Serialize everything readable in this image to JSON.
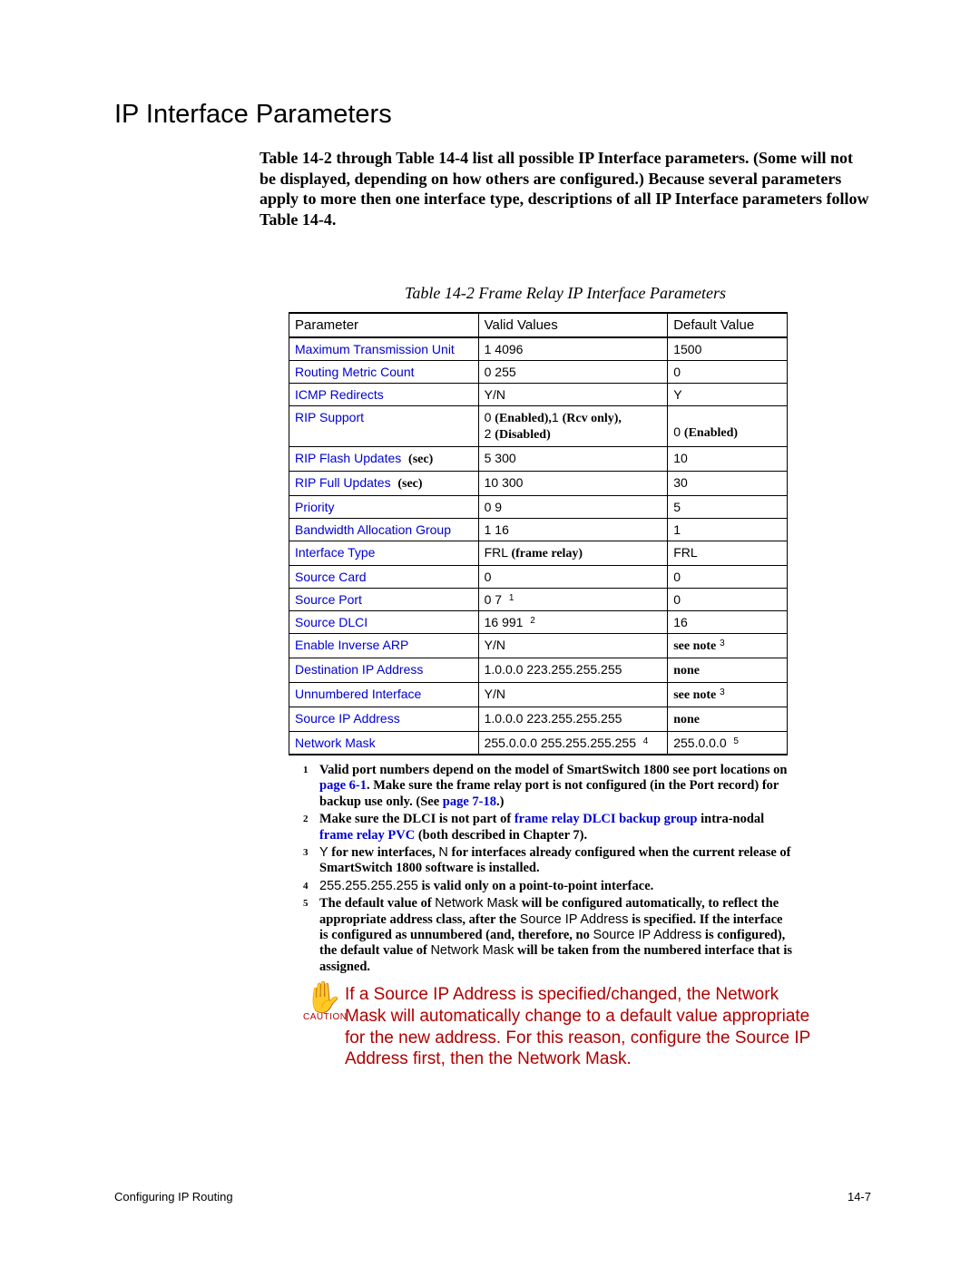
{
  "heading": "IP Interface Parameters",
  "intro": "Table 14-2 through Table 14-4 list all possible IP Interface parameters. (Some will not be displayed, depending on how others are configured.) Because several parameters apply to more then one interface type, descriptions of all IP Interface parameters follow Table 14-4.",
  "table_caption": "Table 14-2   Frame Relay IP Interface Parameters",
  "columns": {
    "c0": "Parameter",
    "c1": "Valid Values",
    "c2": "Default Value"
  },
  "rows": [
    {
      "p": "Maximum Transmission Unit",
      "v": "1 4096",
      "d": "1500"
    },
    {
      "p": "Routing Metric Count",
      "v": "0 255",
      "d": "0"
    },
    {
      "p": "ICMP Redirects",
      "v": "Y/N",
      "d": "Y"
    },
    {
      "p": "RIP Support",
      "v_html": "<span class='nf'>0</span> <span class='bold'>(Enabled),</span><span class='nf'>1</span> <span class='bold'>(Rcv only),</span><br><span class='nf'>2</span> <span class='bold'>(Disabled)</span>",
      "d_html": "<br><span class='nf'>0</span> <span class='bold'>(Enabled)</span>"
    },
    {
      "p_html": "<a>RIP Flash Updates</a> &nbsp;<span class='sec bold'>(sec)</span>",
      "v": "5 300",
      "d": "10"
    },
    {
      "p_html": "<a>RIP Full Updates</a> &nbsp;<span class='sec bold'>(sec)</span>",
      "v": "10 300",
      "d": "30"
    },
    {
      "p": "Priority",
      "v": "0 9",
      "d": "5"
    },
    {
      "p": "Bandwidth Allocation Group",
      "v": "1 16",
      "d": "1"
    },
    {
      "p": "Interface Type",
      "v_html": "<span class='nf'>FRL</span> <span class='bold'>(frame relay)</span>",
      "d": "FRL"
    },
    {
      "p": "Source Card",
      "v": "0",
      "d": "0"
    },
    {
      "p": "Source Port",
      "v_html": "0 7 &nbsp;<span class='sup-inline'>1</span>",
      "d": "0"
    },
    {
      "p": "Source DLCI",
      "v_html": "16 991 &nbsp;<span class='sup-inline'>2</span>",
      "d": "16"
    },
    {
      "p": "Enable Inverse ARP",
      "v": "Y/N",
      "d_html": "<span class='bold'>see note</span> <span class='sup-inline'>3</span>"
    },
    {
      "p": "Destination IP Address",
      "v": "1.0.0.0 223.255.255.255",
      "d_html": "<span class='bold'>none</span>"
    },
    {
      "p": "Unnumbered Interface",
      "v": "Y/N",
      "d_html": "<span class='bold'>see note</span> <span class='sup-inline'>3</span>"
    },
    {
      "p": "Source IP Address",
      "v": "1.0.0.0 223.255.255.255",
      "d_html": "<span class='bold'>none</span>"
    },
    {
      "p": "Network Mask",
      "v_html": "255.0.0.0 255.255.255.255 &nbsp;<span class='sup-inline'>4</span>",
      "d_html": "255.0.0.0 &nbsp;<span class='sup-inline'>5</span>"
    }
  ],
  "notes": [
    {
      "n": "1",
      "html": "Valid port numbers depend on the model of SmartSwitch 1800 see port locations on <a>page 6-1</a>. Make sure the frame relay port is not configured (in the Port record) for backup use only. (See <a>page 7-18</a>.)"
    },
    {
      "n": "2",
      "html": "Make sure the DLCI is not part of <a>frame relay DLCI backup group</a> intra-nodal <a>frame relay PVC</a> (both described in Chapter 7)."
    },
    {
      "n": "3",
      "html": "<span class='nf'>Y</span> for new interfaces, <span class='nf'>N</span> for interfaces already configured when the current release of SmartSwitch 1800 software is installed."
    },
    {
      "n": "4",
      "html": "<span class='nf'>255.255.255.255</span> is valid only on a point-to-point interface."
    },
    {
      "n": "5",
      "html": "The default value of <span class='nf'>Network Mask</span> will be configured automatically, to reflect the appropriate address class, after the <span class='nf'>Source IP Address</span> is specified. If the interface is configured as unnumbered (and, therefore, no <span class='nf'>Source IP Address</span> is configured), the default value of <span class='nf'>Network Mask</span> will be taken from the numbered interface that is assigned."
    }
  ],
  "caution_label": "CAUTION",
  "caution_text": "If a Source IP Address is specified/changed, the Network Mask will automatically change to a default value appropriate for the new address. For this reason, configure the Source IP Address first, then the Network Mask.",
  "footer_left": "Configuring IP Routing",
  "footer_right": "14-7"
}
